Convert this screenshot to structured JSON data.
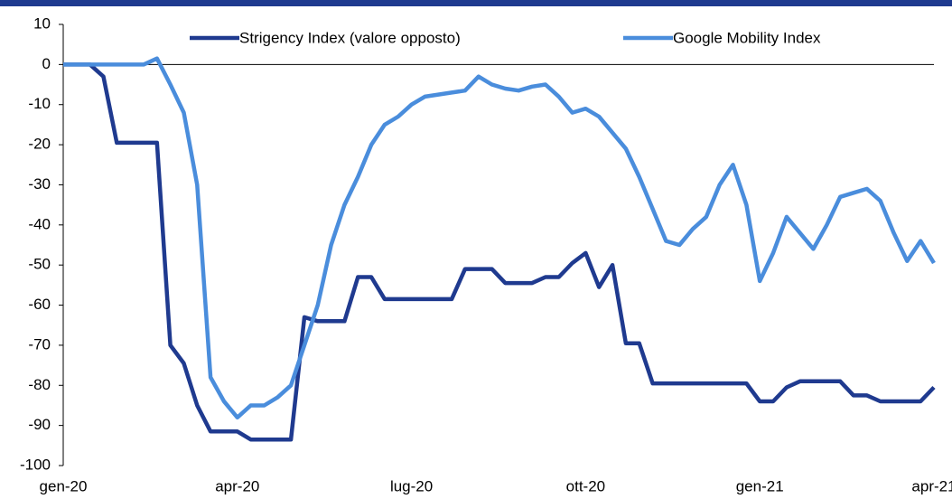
{
  "chart_data": {
    "type": "line",
    "categories": [
      "gen-20",
      null,
      null,
      null,
      null,
      null,
      null,
      null,
      null,
      null,
      null,
      null,
      null,
      "apr-20",
      null,
      null,
      null,
      null,
      null,
      null,
      null,
      null,
      null,
      null,
      null,
      null,
      "lug-20",
      null,
      null,
      null,
      null,
      null,
      null,
      null,
      null,
      null,
      null,
      null,
      null,
      "ott-20",
      null,
      null,
      null,
      null,
      null,
      null,
      null,
      null,
      null,
      null,
      null,
      null,
      "gen-21",
      null,
      null,
      null,
      null,
      null,
      null,
      null,
      null,
      null,
      null,
      null,
      null,
      "apr-21"
    ],
    "series": [
      {
        "name": "Strigency Index (valore opposto)",
        "color": "#1f3a8f",
        "values": [
          0,
          0,
          0,
          -3,
          -19.5,
          -19.5,
          -19.5,
          -19.5,
          -70,
          -74.5,
          -85,
          -91.5,
          -91.5,
          -91.5,
          -93.5,
          -93.5,
          -93.5,
          -93.5,
          -63,
          -64,
          -64,
          -64,
          -53,
          -53,
          -58.5,
          -58.5,
          -58.5,
          -58.5,
          -58.5,
          -58.5,
          -51,
          -51,
          -51,
          -54.5,
          -54.5,
          -54.5,
          -53,
          -53,
          -49.5,
          -47,
          -55.5,
          -50,
          -69.5,
          -69.5,
          -79.5,
          -79.5,
          -79.5,
          -79.5,
          -79.5,
          -79.5,
          -79.5,
          -79.5,
          -84,
          -84,
          -80.5,
          -79,
          -79,
          -79,
          -79,
          -82.5,
          -82.5,
          -84,
          -84,
          -84,
          -84,
          -80.5
        ]
      },
      {
        "name": "Google Mobility Index",
        "color": "#4a8ddc",
        "values": [
          0,
          0,
          0,
          0,
          0,
          0,
          0,
          1.5,
          -5,
          -12,
          -30,
          -78,
          -84,
          -88,
          -85,
          -85,
          -83,
          -80,
          -70,
          -60,
          -45,
          -35,
          -28,
          -20,
          -15,
          -13,
          -10,
          -8,
          -7.5,
          -7,
          -6.5,
          -3,
          -5,
          -6,
          -6.5,
          -5.5,
          -5,
          -8,
          -12,
          -11,
          -13,
          -17,
          -21,
          -28,
          -36,
          -44,
          -45,
          -41,
          -38,
          -30,
          -25,
          -35,
          -54,
          -47,
          -38,
          -42,
          -46,
          -40,
          -33,
          -32,
          -31,
          -34,
          -42,
          -49,
          -44,
          -49.5
        ]
      }
    ],
    "ylim": [
      -100,
      10
    ],
    "yticks": [
      -100,
      -90,
      -80,
      -70,
      -60,
      -50,
      -40,
      -30,
      -20,
      -10,
      0,
      10
    ],
    "legend": "top"
  }
}
